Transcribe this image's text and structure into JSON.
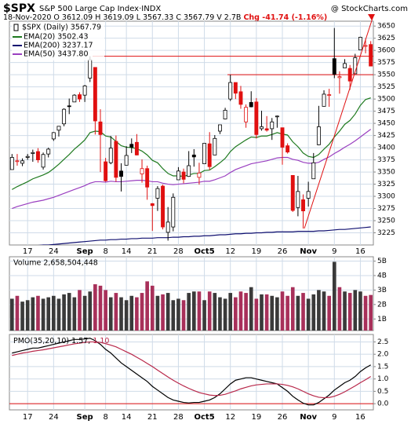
{
  "chart_data": [
    {
      "type": "candlestick",
      "title": "$SPX",
      "subtitle": "S&P 500 Large Cap Index·INDX",
      "watermark": "@ StockCharts.com",
      "info": "18-Nov-2020   O 3612.09  H 3619.09  L 3567.33  C 3567.79  V 2.7B  ",
      "change": "Chg -41.74 (-1.16%)",
      "name": "$SPX (Daily) 3567.79",
      "categories": [
        null,
        null,
        null,
        "17",
        null,
        null,
        null,
        null,
        "24",
        null,
        null,
        null,
        null,
        null,
        "Sep",
        null,
        null,
        null,
        "8",
        null,
        null,
        null,
        "14",
        null,
        null,
        null,
        null,
        "21",
        null,
        null,
        null,
        null,
        "28",
        null,
        null,
        null,
        null,
        "Oct5",
        null,
        null,
        null,
        null,
        "12",
        null,
        null,
        null,
        null,
        "19",
        null,
        null,
        null,
        null,
        "26",
        null,
        null,
        null,
        null,
        "Nov",
        null,
        null,
        null,
        null,
        "9",
        null,
        null,
        null,
        null,
        "16",
        null,
        null
      ],
      "open": [
        3355,
        3373,
        3368,
        3380,
        3388,
        3392,
        3360,
        3387,
        3418,
        3436,
        3449,
        3486,
        3494,
        3509,
        3508,
        3543,
        3565,
        3453,
        3371,
        3369,
        3413,
        3352,
        3364,
        3407,
        3411,
        3346,
        3357,
        3285,
        3296,
        3321,
        3226,
        3237,
        3334,
        3350,
        3341,
        3385,
        3339,
        3367,
        3408,
        3385,
        3434,
        3459,
        3500,
        3534,
        3515,
        3453,
        3493,
        3494,
        3439,
        3439,
        3439,
        3464,
        3441,
        3404,
        3343,
        3277,
        3293,
        3296,
        3336,
        3406,
        3485,
        3508,
        3583,
        3544,
        3564,
        3563,
        3552,
        3601,
        3610,
        3612.09
      ],
      "high": [
        3387,
        3387,
        3378,
        3387,
        3396,
        3399,
        3390,
        3400,
        3432,
        3444,
        3481,
        3501,
        3510,
        3514,
        3529,
        3588,
        3565,
        3479,
        3379,
        3424,
        3425,
        3368,
        3403,
        3419,
        3428,
        3376,
        3363,
        3286,
        3321,
        3324,
        3278,
        3306,
        3360,
        3357,
        3393,
        3397,
        3369,
        3409,
        3432,
        3426,
        3447,
        3482,
        3550,
        3534,
        3527,
        3489,
        3516,
        3502,
        3476,
        3465,
        3461,
        3466,
        3441,
        3409,
        3343,
        3342,
        3304,
        3330,
        3389,
        3486,
        3518,
        3521,
        3646,
        3557,
        3582,
        3570,
        3593,
        3628,
        3624,
        3619.09
      ],
      "low": [
        3355,
        3363,
        3362,
        3375,
        3371,
        3369,
        3355,
        3380,
        3414,
        3423,
        3444,
        3469,
        3495,
        3494,
        3494,
        3535,
        3427,
        3350,
        3330,
        3366,
        3330,
        3310,
        3364,
        3389,
        3384,
        3328,
        3293,
        3229,
        3270,
        3232,
        3209,
        3228,
        3334,
        3327,
        3340,
        3361,
        3324,
        3367,
        3354,
        3385,
        3428,
        3458,
        3496,
        3500,
        3480,
        3441,
        3483,
        3419,
        3435,
        3433,
        3416,
        3441,
        3365,
        3388,
        3268,
        3259,
        3234,
        3279,
        3336,
        3405,
        3485,
        3484,
        3543,
        3511,
        3564,
        3519,
        3552,
        3601,
        3594,
        3567.33
      ],
      "close": [
        3380,
        3373,
        3373,
        3382,
        3390,
        3375,
        3386,
        3397,
        3431,
        3444,
        3479,
        3485,
        3508,
        3500,
        3527,
        3581,
        3455,
        3427,
        3332,
        3399,
        3339,
        3341,
        3384,
        3401,
        3385,
        3357,
        3319,
        3281,
        3316,
        3237,
        3247,
        3298,
        3352,
        3335,
        3363,
        3381,
        3348,
        3409,
        3361,
        3419,
        3447,
        3477,
        3534,
        3512,
        3489,
        3483,
        3484,
        3427,
        3443,
        3436,
        3453,
        3465,
        3401,
        3391,
        3271,
        3310,
        3270,
        3310,
        3369,
        3443,
        3510,
        3509,
        3551,
        3546,
        3573,
        3537,
        3585,
        3627,
        3610,
        3567.79
      ],
      "up_color": "#000000",
      "down_color": "#e01010",
      "series": [
        {
          "name": "EMA(20) 3502.43",
          "color": "#1f7a1f",
          "values": [
            3314,
            3320,
            3325,
            3330,
            3336,
            3340,
            3344,
            3349,
            3357,
            3366,
            3376,
            3386,
            3397,
            3406,
            3416,
            3431,
            3434,
            3433,
            3424,
            3422,
            3413,
            3404,
            3401,
            3400,
            3398,
            3393,
            3385,
            3374,
            3369,
            3357,
            3347,
            3342,
            3342,
            3341,
            3344,
            3347,
            3347,
            3353,
            3354,
            3361,
            3369,
            3378,
            3392,
            3402,
            3409,
            3416,
            3422,
            3421,
            3424,
            3424,
            3427,
            3431,
            3428,
            3426,
            3412,
            3402,
            3389,
            3382,
            3380,
            3386,
            3397,
            3407,
            3422,
            3434,
            3448,
            3456,
            3469,
            3487,
            3499,
            3502.43
          ]
        },
        {
          "name": "EMA(200) 3237.17",
          "color": "#101070",
          "values": [
            3196,
            3197,
            3197,
            3198,
            3198,
            3199,
            3200,
            3200,
            3201,
            3202,
            3203,
            3204,
            3205,
            3206,
            3207,
            3208,
            3209,
            3210,
            3210,
            3211,
            3211,
            3212,
            3212,
            3213,
            3213,
            3214,
            3214,
            3214,
            3215,
            3215,
            3215,
            3216,
            3216,
            3217,
            3217,
            3218,
            3218,
            3219,
            3219,
            3220,
            3221,
            3221,
            3222,
            3223,
            3223,
            3224,
            3224,
            3225,
            3225,
            3226,
            3226,
            3227,
            3227,
            3227,
            3227,
            3228,
            3228,
            3228,
            3228,
            3229,
            3229,
            3230,
            3231,
            3232,
            3232,
            3233,
            3234,
            3235,
            3236,
            3237.17
          ]
        },
        {
          "name": "EMA(50) 3437.80",
          "color": "#9a3fc0",
          "values": [
            3275,
            3279,
            3282,
            3285,
            3288,
            3290,
            3292,
            3295,
            3298,
            3302,
            3306,
            3310,
            3314,
            3318,
            3322,
            3327,
            3330,
            3330,
            3329,
            3331,
            3330,
            3330,
            3331,
            3332,
            3333,
            3333,
            3332,
            3330,
            3330,
            3327,
            3325,
            3324,
            3325,
            3326,
            3327,
            3328,
            3329,
            3331,
            3331,
            3334,
            3338,
            3342,
            3349,
            3355,
            3359,
            3363,
            3367,
            3369,
            3371,
            3373,
            3376,
            3379,
            3380,
            3380,
            3376,
            3374,
            3370,
            3368,
            3368,
            3370,
            3376,
            3381,
            3388,
            3394,
            3401,
            3407,
            3414,
            3422,
            3430,
            3437.8
          ]
        }
      ],
      "hlines": [
        3588,
        3550
      ],
      "hline_color": "#e01010",
      "ylim": [
        3200,
        3660
      ],
      "yticks": [
        3225,
        3250,
        3275,
        3300,
        3325,
        3350,
        3375,
        3400,
        3425,
        3450,
        3475,
        3500,
        3525,
        3550,
        3575,
        3600,
        3625,
        3650
      ],
      "grid": true
    },
    {
      "type": "bar",
      "name": "Volume 2,658,504,448",
      "values": [
        2.4,
        2.6,
        2.2,
        2.3,
        2.5,
        2.6,
        2.4,
        2.5,
        2.6,
        2.4,
        2.7,
        2.8,
        2.5,
        3.0,
        2.6,
        2.9,
        3.4,
        3.3,
        3.0,
        2.5,
        2.8,
        2.5,
        2.3,
        2.6,
        2.5,
        2.8,
        3.6,
        3.3,
        2.6,
        2.7,
        2.8,
        2.3,
        2.4,
        2.3,
        2.8,
        2.9,
        2.9,
        2.3,
        2.9,
        2.8,
        2.5,
        2.4,
        2.8,
        2.5,
        2.9,
        2.8,
        3.2,
        2.4,
        2.7,
        2.7,
        2.6,
        2.5,
        2.9,
        2.6,
        3.2,
        2.6,
        2.8,
        2.4,
        2.7,
        3.0,
        2.9,
        2.6,
        4.95,
        3.2,
        2.9,
        2.8,
        3.0,
        2.9,
        2.6,
        2.66
      ],
      "up_color": "#3a3a3a",
      "down_color": "#a8305a",
      "ylim": [
        0.2,
        5.3
      ],
      "yticks": [
        {
          "value": 1,
          "label": "1B"
        },
        {
          "value": 2,
          "label": "2B"
        },
        {
          "value": 3,
          "label": "3B"
        },
        {
          "value": 4,
          "label": "4B"
        },
        {
          "value": 5,
          "label": "5B"
        }
      ],
      "grid": true
    },
    {
      "type": "line",
      "series": [
        {
          "name": "PMO(35,20,10) 1.57,",
          "color": "#000000",
          "values": [
            2.05,
            2.1,
            2.15,
            2.2,
            2.25,
            2.25,
            2.3,
            2.35,
            2.4,
            2.45,
            2.5,
            2.55,
            2.6,
            2.6,
            2.62,
            2.65,
            2.55,
            2.4,
            2.2,
            2.05,
            1.85,
            1.65,
            1.5,
            1.35,
            1.2,
            1.05,
            0.9,
            0.7,
            0.55,
            0.4,
            0.25,
            0.15,
            0.1,
            0.05,
            0.03,
            0.05,
            0.05,
            0.1,
            0.15,
            0.25,
            0.4,
            0.6,
            0.8,
            0.95,
            1.0,
            1.05,
            1.05,
            1.0,
            0.95,
            0.9,
            0.85,
            0.8,
            0.65,
            0.5,
            0.3,
            0.15,
            0.02,
            -0.05,
            -0.05,
            0.05,
            0.2,
            0.35,
            0.55,
            0.7,
            0.85,
            0.95,
            1.1,
            1.3,
            1.45,
            1.57
          ]
        },
        {
          "name": "1.10",
          "color": "#b8284a",
          "values": [
            1.95,
            2.0,
            2.05,
            2.08,
            2.12,
            2.15,
            2.18,
            2.22,
            2.26,
            2.3,
            2.34,
            2.38,
            2.42,
            2.45,
            2.48,
            2.5,
            2.5,
            2.48,
            2.43,
            2.37,
            2.3,
            2.2,
            2.1,
            2.0,
            1.88,
            1.76,
            1.63,
            1.5,
            1.36,
            1.22,
            1.08,
            0.95,
            0.83,
            0.72,
            0.62,
            0.53,
            0.45,
            0.4,
            0.35,
            0.33,
            0.34,
            0.38,
            0.45,
            0.52,
            0.6,
            0.66,
            0.72,
            0.76,
            0.78,
            0.8,
            0.8,
            0.8,
            0.78,
            0.74,
            0.68,
            0.6,
            0.5,
            0.4,
            0.32,
            0.26,
            0.24,
            0.25,
            0.3,
            0.38,
            0.48,
            0.6,
            0.72,
            0.85,
            0.97,
            1.1
          ]
        }
      ],
      "zero_line": true,
      "zero_line_color": "#e01010",
      "ylim": [
        -0.25,
        2.8
      ],
      "yticks": [
        {
          "value": 0,
          "label": "0.0"
        },
        0.5,
        {
          "value": 1,
          "label": "1.0"
        },
        1.5,
        {
          "value": 2,
          "label": "2.0"
        },
        2.5
      ],
      "grid": true
    }
  ]
}
